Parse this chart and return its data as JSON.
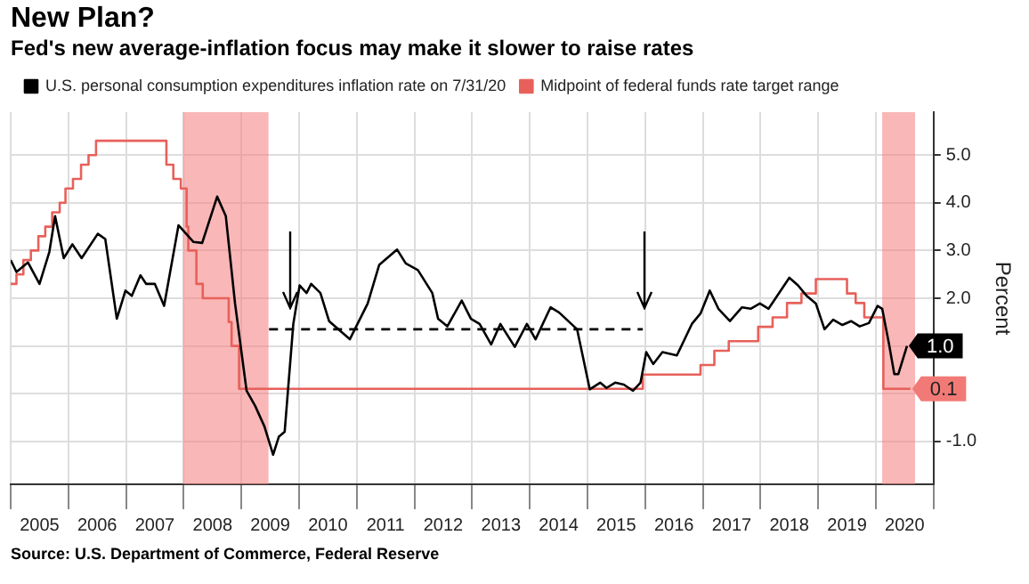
{
  "chart_data": {
    "type": "line",
    "title": "New Plan?",
    "subtitle": "Fed's new average-inflation focus may make it slower to raise rates",
    "ylabel": "Percent",
    "annotations": [
      "Source: U.S. Department of Commerce, Federal Reserve"
    ],
    "xlim": [
      2005,
      2021
    ],
    "xticks": [
      {
        "value": 2005,
        "label": null
      },
      {
        "value": 2005.5,
        "label": "2005"
      },
      {
        "value": 2006,
        "label": null
      },
      {
        "value": 2006.5,
        "label": "2006"
      },
      {
        "value": 2007,
        "label": null
      },
      {
        "value": 2007.5,
        "label": "2007"
      },
      {
        "value": 2008,
        "label": null
      },
      {
        "value": 2008.5,
        "label": "2008"
      },
      {
        "value": 2009,
        "label": null
      },
      {
        "value": 2009.5,
        "label": "2009"
      },
      {
        "value": 2010,
        "label": null
      },
      {
        "value": 2010.5,
        "label": "2010"
      },
      {
        "value": 2011,
        "label": null
      },
      {
        "value": 2011.5,
        "label": "2011"
      },
      {
        "value": 2012,
        "label": null
      },
      {
        "value": 2012.5,
        "label": "2012"
      },
      {
        "value": 2013,
        "label": null
      },
      {
        "value": 2013.5,
        "label": "2013"
      },
      {
        "value": 2014,
        "label": null
      },
      {
        "value": 2014.5,
        "label": "2014"
      },
      {
        "value": 2015,
        "label": null
      },
      {
        "value": 2015.5,
        "label": "2015"
      },
      {
        "value": 2016,
        "label": null
      },
      {
        "value": 2016.5,
        "label": "2016"
      },
      {
        "value": 2017,
        "label": null
      },
      {
        "value": 2017.5,
        "label": "2017"
      },
      {
        "value": 2018,
        "label": null
      },
      {
        "value": 2018.5,
        "label": "2018"
      },
      {
        "value": 2019,
        "label": null
      },
      {
        "value": 2019.5,
        "label": "2019"
      },
      {
        "value": 2020,
        "label": null
      },
      {
        "value": 2020.5,
        "label": "2020"
      },
      {
        "value": 2021,
        "label": null
      }
    ],
    "ylim": [
      -1.9,
      5.9
    ],
    "yticks": [
      {
        "value": -1,
        "label": "-1.0"
      },
      {
        "value": 0,
        "label": null
      },
      {
        "value": 1,
        "label": null
      },
      {
        "value": 2,
        "label": "2.0"
      },
      {
        "value": 3,
        "label": "3.0"
      },
      {
        "value": 4,
        "label": "4.0"
      },
      {
        "value": 5,
        "label": "5.0"
      }
    ],
    "grid": true,
    "legend": "top left",
    "marker": "none",
    "bands": [
      {
        "axis": "x",
        "from": 2007.99,
        "to": 2009.47,
        "color": "#f47c7c"
      },
      {
        "axis": "x",
        "from": 2020.11,
        "to": 2020.68,
        "color": "#f47c7c"
      }
    ],
    "series": [
      {
        "name": "U.S. personal consumption expenditures inflation rate on 7/31/20",
        "color": "#000000",
        "type": "line",
        "x": [
          2005.0,
          2005.1,
          2005.3,
          2005.5,
          2005.67,
          2005.77,
          2005.92,
          2006.07,
          2006.23,
          2006.51,
          2006.64,
          2006.84,
          2006.99,
          2007.1,
          2007.25,
          2007.35,
          2007.5,
          2007.66,
          2007.91,
          2008.17,
          2008.32,
          2008.58,
          2008.73,
          2008.89,
          2009.09,
          2009.24,
          2009.4,
          2009.55,
          2009.65,
          2009.75,
          2009.9,
          2010.01,
          2010.13,
          2010.21,
          2010.37,
          2010.52,
          2010.88,
          2011.19,
          2011.39,
          2011.7,
          2011.85,
          2012.06,
          2012.31,
          2012.41,
          2012.57,
          2012.82,
          2012.98,
          2013.13,
          2013.33,
          2013.49,
          2013.74,
          2013.95,
          2014.1,
          2014.36,
          2014.51,
          2014.82,
          2015.04,
          2015.22,
          2015.33,
          2015.48,
          2015.63,
          2015.79,
          2015.92,
          2016.02,
          2016.14,
          2016.3,
          2016.55,
          2016.81,
          2016.96,
          2017.12,
          2017.27,
          2017.47,
          2017.68,
          2017.83,
          2017.99,
          2018.14,
          2018.29,
          2018.5,
          2018.65,
          2018.8,
          2018.96,
          2019.11,
          2019.26,
          2019.42,
          2019.57,
          2019.72,
          2019.88,
          2020.03,
          2020.11,
          2020.23,
          2020.32,
          2020.39,
          2020.54
        ],
        "values": [
          2.8,
          2.55,
          2.75,
          2.3,
          2.97,
          3.72,
          2.84,
          3.13,
          2.84,
          3.35,
          3.24,
          1.57,
          2.16,
          2.05,
          2.48,
          2.3,
          2.3,
          1.84,
          3.53,
          3.18,
          3.16,
          4.13,
          3.72,
          1.89,
          0.06,
          -0.26,
          -0.69,
          -1.28,
          -0.9,
          -0.8,
          1.46,
          2.27,
          2.11,
          2.3,
          2.11,
          1.52,
          1.14,
          1.89,
          2.7,
          3.02,
          2.73,
          2.59,
          2.11,
          1.57,
          1.41,
          1.95,
          1.57,
          1.46,
          1.03,
          1.46,
          0.98,
          1.46,
          1.14,
          1.81,
          1.7,
          1.35,
          0.09,
          0.23,
          0.12,
          0.23,
          0.19,
          0.06,
          0.23,
          0.87,
          0.62,
          0.87,
          0.8,
          1.46,
          1.68,
          2.16,
          1.78,
          1.52,
          1.81,
          1.78,
          1.89,
          1.78,
          2.05,
          2.43,
          2.27,
          2.05,
          1.89,
          1.35,
          1.55,
          1.44,
          1.52,
          1.41,
          1.48,
          1.84,
          1.78,
          1.03,
          0.41,
          0.41,
          1.0
        ],
        "value_labels": [
          null,
          null,
          null,
          null,
          null,
          null,
          null,
          null,
          null,
          null,
          null,
          null,
          null,
          null,
          null,
          null,
          null,
          null,
          null,
          null,
          null,
          null,
          null,
          null,
          null,
          null,
          null,
          null,
          null,
          null,
          null,
          null,
          null,
          null,
          null,
          null,
          null,
          null,
          null,
          null,
          null,
          null,
          null,
          null,
          null,
          null,
          null,
          null,
          null,
          null,
          null,
          null,
          null,
          null,
          null,
          null,
          null,
          null,
          null,
          null,
          null,
          null,
          null,
          null,
          null,
          null,
          null,
          null,
          null,
          null,
          null,
          null,
          null,
          null,
          null,
          null,
          null,
          null,
          null,
          null,
          null,
          null,
          null,
          null,
          null,
          null,
          null,
          null,
          null,
          null,
          null,
          null,
          "1.0"
        ]
      },
      {
        "name": "Midpoint of federal funds rate target range",
        "color": "#e8605a",
        "type": "step",
        "x": [
          2005.0,
          2005.1,
          2005.22,
          2005.35,
          2005.48,
          2005.6,
          2005.72,
          2005.85,
          2005.95,
          2006.08,
          2006.22,
          2006.35,
          2006.48,
          2007.7,
          2007.82,
          2007.95,
          2008.05,
          2008.08,
          2008.22,
          2008.33,
          2008.78,
          2008.83,
          2008.96,
          2015.96,
          2016.96,
          2017.2,
          2017.45,
          2017.96,
          2018.21,
          2018.46,
          2018.71,
          2018.96,
          2019.5,
          2019.65,
          2019.8,
          2020.13,
          2020.6
        ],
        "values": [
          2.3,
          2.5,
          2.8,
          3.0,
          3.3,
          3.5,
          3.8,
          4.0,
          4.3,
          4.5,
          4.8,
          5.0,
          5.3,
          4.8,
          4.5,
          4.3,
          3.5,
          3.0,
          2.3,
          2.0,
          1.5,
          1.0,
          0.1,
          0.4,
          0.6,
          0.9,
          1.1,
          1.4,
          1.6,
          1.9,
          2.1,
          2.4,
          2.1,
          1.9,
          1.6,
          0.1,
          0.1
        ],
        "value_labels": [
          null,
          null,
          null,
          null,
          null,
          null,
          null,
          null,
          null,
          null,
          null,
          null,
          null,
          null,
          null,
          null,
          null,
          null,
          null,
          null,
          null,
          null,
          null,
          null,
          null,
          null,
          null,
          null,
          null,
          null,
          null,
          null,
          null,
          null,
          null,
          null,
          "0.1"
        ]
      },
      {
        "color": "#000000",
        "type": "line",
        "line_style": "dashed",
        "x": [
          2009.48,
          2015.96
        ],
        "values": [
          1.35,
          1.35
        ]
      }
    ]
  }
}
